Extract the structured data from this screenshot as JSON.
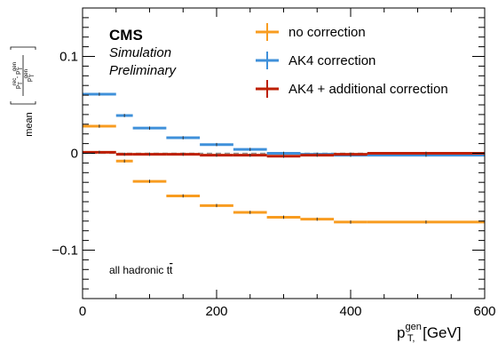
{
  "chart_data": {
    "type": "step",
    "experiment_label": "CMS",
    "status_line1": "Simulation",
    "status_line2": "Preliminary",
    "process_label_prefix": "all hadronic t",
    "process_label_tbar": "t",
    "xlabel": {
      "main": "p",
      "sup": "gen",
      "sub": "T,",
      "unit": " [GeV]"
    },
    "ylabel": {
      "prefix": "mean",
      "num_p": "p",
      "num_sup1": "rec",
      "num_sub1": "T",
      "minus": " - ",
      "num_p2": "p",
      "num_sup2": "gen",
      "num_sub2": "T",
      "den_p": "p",
      "den_sup": "gen",
      "den_sub": "T"
    },
    "xlim": [
      0,
      600
    ],
    "ylim": [
      -0.15,
      0.15
    ],
    "xticks": [
      0,
      200,
      400,
      600
    ],
    "xtick_labels": [
      "0",
      "200",
      "400",
      "600"
    ],
    "yticks": [
      -0.1,
      0,
      0.1
    ],
    "ytick_labels": [
      "−0.1",
      "0",
      "0.1"
    ],
    "zero_line": true,
    "legend_position": "top-right",
    "series": [
      {
        "name": "no correction",
        "color": "#f89c20",
        "bins": [
          {
            "x0": 0,
            "x1": 50,
            "y": 0.028
          },
          {
            "x0": 50,
            "x1": 75,
            "y": -0.008
          },
          {
            "x0": 75,
            "x1": 125,
            "y": -0.029
          },
          {
            "x0": 125,
            "x1": 175,
            "y": -0.044
          },
          {
            "x0": 175,
            "x1": 225,
            "y": -0.054
          },
          {
            "x0": 225,
            "x1": 275,
            "y": -0.061
          },
          {
            "x0": 275,
            "x1": 325,
            "y": -0.066
          },
          {
            "x0": 325,
            "x1": 375,
            "y": -0.068
          },
          {
            "x0": 375,
            "x1": 425,
            "y": -0.071
          },
          {
            "x0": 425,
            "x1": 600,
            "y": -0.071
          }
        ]
      },
      {
        "name": "AK4 correction",
        "color": "#3f90da",
        "bins": [
          {
            "x0": 0,
            "x1": 50,
            "y": 0.061
          },
          {
            "x0": 50,
            "x1": 75,
            "y": 0.039
          },
          {
            "x0": 75,
            "x1": 125,
            "y": 0.026
          },
          {
            "x0": 125,
            "x1": 175,
            "y": 0.016
          },
          {
            "x0": 175,
            "x1": 225,
            "y": 0.009
          },
          {
            "x0": 225,
            "x1": 275,
            "y": 0.004
          },
          {
            "x0": 275,
            "x1": 325,
            "y": 0.0
          },
          {
            "x0": 325,
            "x1": 375,
            "y": -0.001
          },
          {
            "x0": 375,
            "x1": 425,
            "y": -0.002
          },
          {
            "x0": 425,
            "x1": 600,
            "y": -0.002
          }
        ]
      },
      {
        "name": "AK4 + additional correction",
        "color": "#bd1f01",
        "bins": [
          {
            "x0": 0,
            "x1": 50,
            "y": 0.001
          },
          {
            "x0": 50,
            "x1": 75,
            "y": -0.001
          },
          {
            "x0": 75,
            "x1": 125,
            "y": -0.001
          },
          {
            "x0": 125,
            "x1": 175,
            "y": -0.001
          },
          {
            "x0": 175,
            "x1": 225,
            "y": -0.002
          },
          {
            "x0": 225,
            "x1": 275,
            "y": -0.002
          },
          {
            "x0": 275,
            "x1": 325,
            "y": -0.003
          },
          {
            "x0": 325,
            "x1": 375,
            "y": -0.002
          },
          {
            "x0": 375,
            "x1": 425,
            "y": -0.001
          },
          {
            "x0": 425,
            "x1": 600,
            "y": 0.0
          }
        ]
      }
    ]
  }
}
